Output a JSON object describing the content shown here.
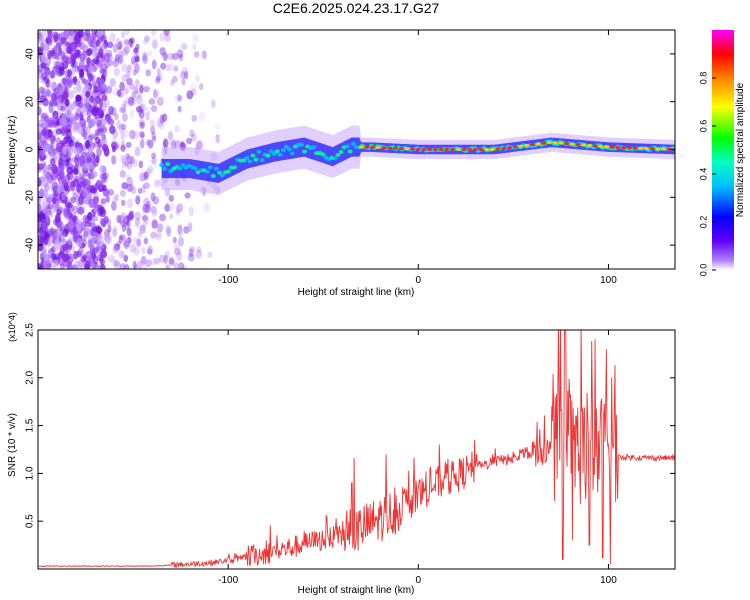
{
  "figure_title": "C2E6.2025.024.23.17.G27",
  "chart_data": [
    {
      "type": "heatmap",
      "title": "C2E6.2025.024.23.17.G27",
      "xlabel": "Height of straight line (km)",
      "ylabel": "Frequency (Hz)",
      "xlim": [
        -200,
        135
      ],
      "ylim": [
        -50,
        50
      ],
      "x_ticks": [
        -100,
        0,
        100
      ],
      "y_ticks": [
        -40,
        -20,
        0,
        20,
        40
      ],
      "grid": false,
      "colorbar": {
        "label": "Normalized spectral amplitude",
        "range": [
          0,
          1
        ],
        "ticks": [
          0.0,
          0.2,
          0.4,
          0.6,
          0.8
        ],
        "colors": [
          "#ffffff",
          "#8000ff",
          "#0000ff",
          "#00ffff",
          "#00ff00",
          "#ffff00",
          "#ff8000",
          "#ff0000",
          "#ff00ff"
        ]
      },
      "noise_region_x": [
        -200,
        -100
      ],
      "signal_center_frequency": [
        {
          "x": -135,
          "y": -8
        },
        {
          "x": -120,
          "y": -8
        },
        {
          "x": -105,
          "y": -10
        },
        {
          "x": -90,
          "y": -4
        },
        {
          "x": -75,
          "y": -1
        },
        {
          "x": -60,
          "y": 1
        },
        {
          "x": -45,
          "y": -3
        },
        {
          "x": -35,
          "y": 1
        },
        {
          "x": -25,
          "y": 1
        },
        {
          "x": 0,
          "y": 0
        },
        {
          "x": 40,
          "y": 0
        },
        {
          "x": 70,
          "y": 3
        },
        {
          "x": 100,
          "y": 1
        },
        {
          "x": 135,
          "y": 0
        }
      ]
    },
    {
      "type": "line",
      "xlabel": "Height of straight line (km)",
      "ylabel": "SNR (10 * v/v)",
      "y_multiplier": "(x10^4)",
      "xlim": [
        -200,
        135
      ],
      "ylim": [
        0,
        2.5
      ],
      "x_ticks": [
        -100,
        0,
        100
      ],
      "y_ticks": [
        0.5,
        1.0,
        1.5,
        2.0,
        2.5
      ],
      "grid": false,
      "color": "#ee3333",
      "series": [
        {
          "baseline": [
            {
              "x": -200,
              "y": 0.03
            },
            {
              "x": -140,
              "y": 0.03
            },
            {
              "x": -110,
              "y": 0.06
            },
            {
              "x": -95,
              "y": 0.1
            },
            {
              "x": -80,
              "y": 0.15
            },
            {
              "x": -65,
              "y": 0.22
            },
            {
              "x": -50,
              "y": 0.3
            },
            {
              "x": -35,
              "y": 0.35
            },
            {
              "x": -20,
              "y": 0.5
            },
            {
              "x": -10,
              "y": 0.6
            },
            {
              "x": 0,
              "y": 0.75
            },
            {
              "x": 10,
              "y": 0.88
            },
            {
              "x": 20,
              "y": 0.95
            },
            {
              "x": 30,
              "y": 1.05
            },
            {
              "x": 40,
              "y": 1.12
            },
            {
              "x": 50,
              "y": 1.15
            },
            {
              "x": 60,
              "y": 1.2
            },
            {
              "x": 70,
              "y": 1.22
            },
            {
              "x": 80,
              "y": 1.2
            },
            {
              "x": 90,
              "y": 1.18
            },
            {
              "x": 105,
              "y": 1.17
            },
            {
              "x": 120,
              "y": 1.16
            },
            {
              "x": 135,
              "y": 1.16
            }
          ],
          "peaks": [
            {
              "x": -100,
              "y": 0.12
            },
            {
              "x": -80,
              "y": 0.3
            },
            {
              "x": -60,
              "y": 0.4
            },
            {
              "x": -48,
              "y": 0.55
            },
            {
              "x": -35,
              "y": 0.9
            },
            {
              "x": -17,
              "y": 1.2
            },
            {
              "x": -2,
              "y": 0.9
            },
            {
              "x": 15,
              "y": 1.1
            },
            {
              "x": 55,
              "y": 1.25
            },
            {
              "x": 72,
              "y": 1.8
            },
            {
              "x": 77,
              "y": 2.5
            },
            {
              "x": 83,
              "y": 1.6
            },
            {
              "x": 93,
              "y": 2.4
            },
            {
              "x": 99,
              "y": 2.3
            }
          ],
          "troughs": [
            {
              "x": 76,
              "y": 0.1
            },
            {
              "x": 81,
              "y": 0.3
            },
            {
              "x": 90,
              "y": 0.25
            },
            {
              "x": 97,
              "y": 0.12
            },
            {
              "x": 101,
              "y": 0.05
            }
          ]
        }
      ]
    }
  ]
}
